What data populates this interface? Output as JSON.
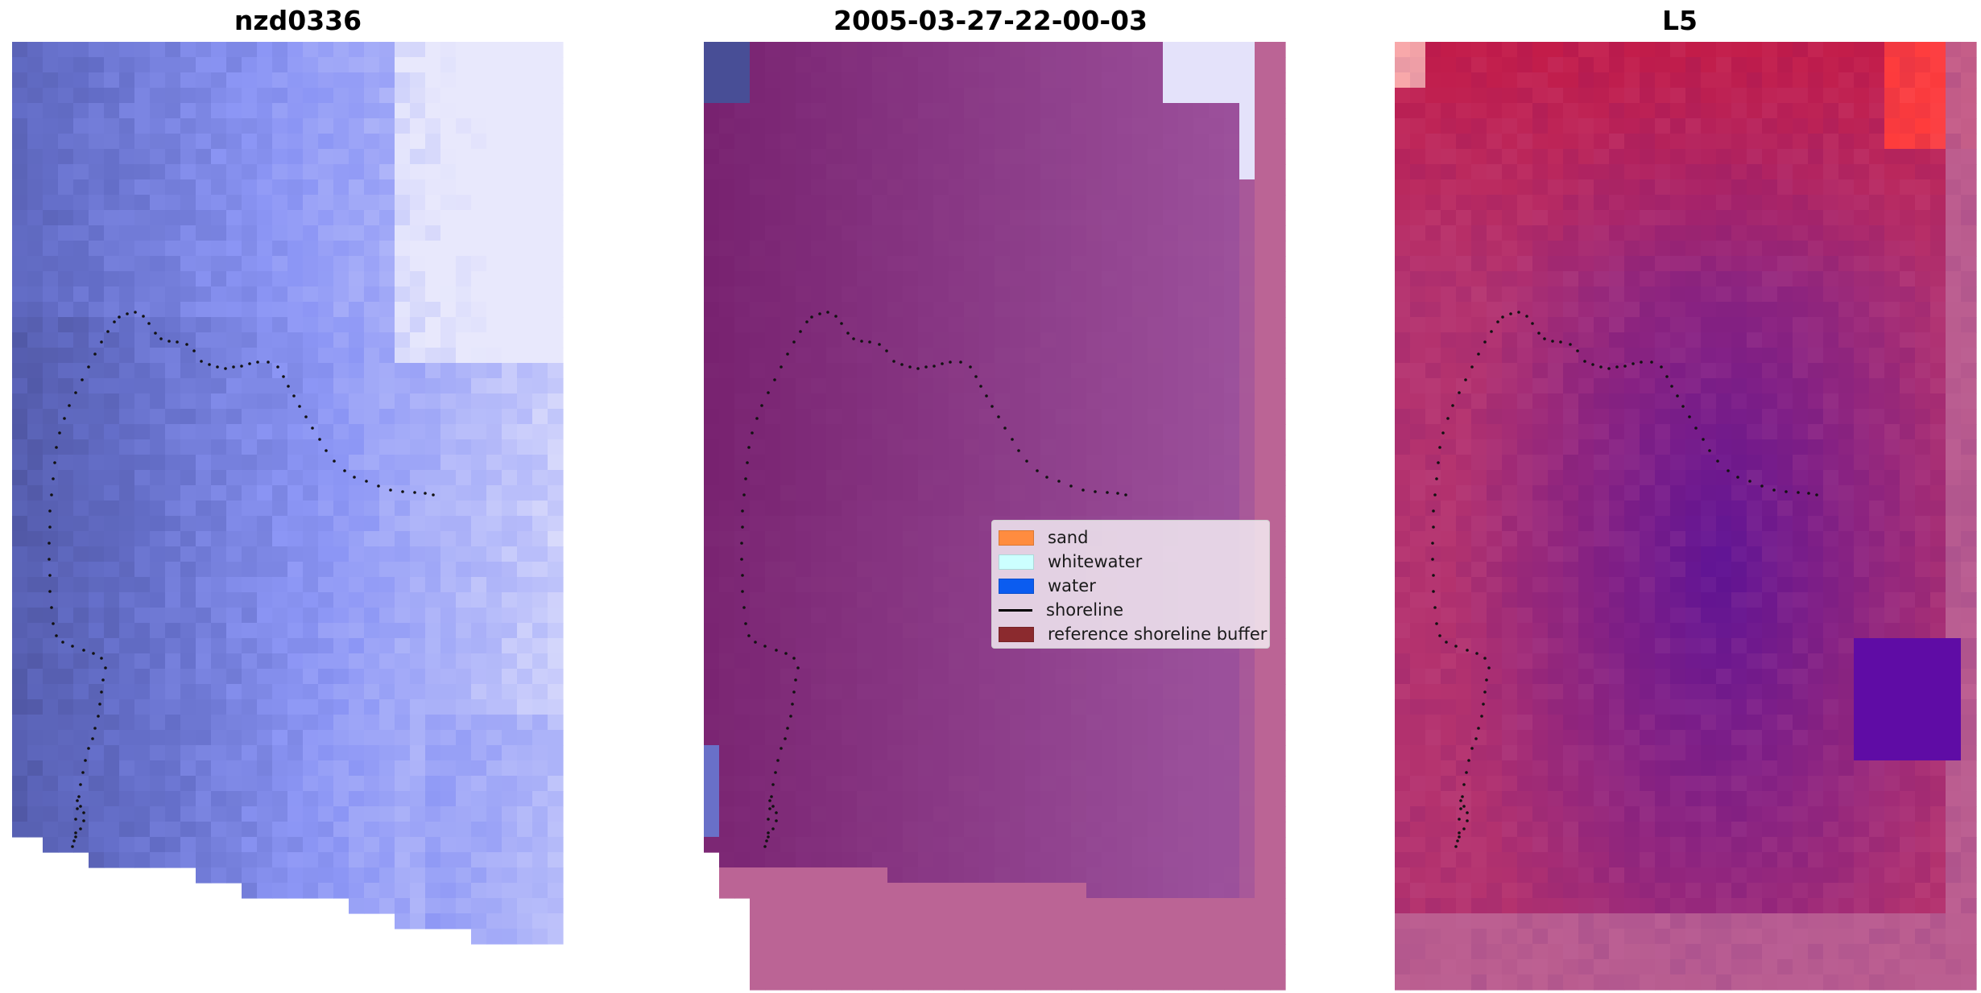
{
  "panels": [
    {
      "title": "nzd0336",
      "colormap": "blue"
    },
    {
      "title": "2005-03-27-22-00-03",
      "colormap": "purple"
    },
    {
      "title": "L5",
      "colormap": "redpurple"
    }
  ],
  "legend": {
    "items": [
      {
        "label": "sand",
        "kind": "patch",
        "color": "#ff8c3f"
      },
      {
        "label": "whitewater",
        "kind": "patch",
        "color": "#ccffff"
      },
      {
        "label": "water",
        "kind": "patch",
        "color": "#0b5cf0"
      },
      {
        "label": "shoreline",
        "kind": "line",
        "color": "#000000"
      },
      {
        "label": "reference shoreline buffer",
        "kind": "patch",
        "color": "#8b2a2e"
      }
    ]
  },
  "colors": {
    "buffer_pink": "#bb6495",
    "background": "#ffffff"
  }
}
